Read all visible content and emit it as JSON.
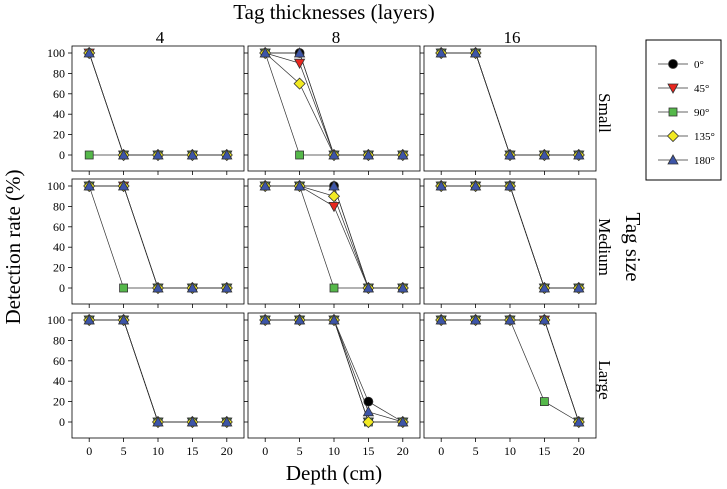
{
  "figure": {
    "title_top": "Tag thicknesses (layers)",
    "side_title": "Tag size",
    "xlabel": "Depth (cm)",
    "ylabel": "Detection rate (%)",
    "columns": [
      "4",
      "8",
      "16"
    ],
    "rows": [
      "Small",
      "Medium",
      "Large"
    ]
  },
  "legend": {
    "position": "top-right",
    "entries": [
      {
        "label": "0°",
        "marker": "circle",
        "color": "#000000"
      },
      {
        "label": "45°",
        "marker": "triangle-down",
        "color": "#e8261e"
      },
      {
        "label": "90°",
        "marker": "square",
        "color": "#55b84a"
      },
      {
        "label": "135°",
        "marker": "diamond",
        "color": "#f2ea22"
      },
      {
        "label": "180°",
        "marker": "triangle-up",
        "color": "#3d55a8"
      }
    ]
  },
  "chart_data": {
    "type": "line",
    "title": "Tag thicknesses (layers)",
    "xlabel": "Depth (cm)",
    "ylabel": "Detection rate (%)",
    "x": [
      0,
      5,
      10,
      15,
      20
    ],
    "xticks": [
      "0",
      "5",
      "10",
      "15",
      "20"
    ],
    "yticks": [
      "0",
      "20",
      "40",
      "60",
      "80",
      "100"
    ],
    "ylim": [
      0,
      100
    ],
    "xlim": [
      -2.5,
      22.5
    ],
    "panels": [
      {
        "row": "Small",
        "column": "4",
        "series": [
          {
            "name": "0°",
            "values": [
              100,
              0,
              0,
              0,
              0
            ]
          },
          {
            "name": "45°",
            "values": [
              100,
              0,
              0,
              0,
              0
            ]
          },
          {
            "name": "90°",
            "values": [
              0,
              0,
              0,
              0,
              0
            ]
          },
          {
            "name": "135°",
            "values": [
              100,
              0,
              0,
              0,
              0
            ]
          },
          {
            "name": "180°",
            "values": [
              100,
              0,
              0,
              0,
              0
            ]
          }
        ]
      },
      {
        "row": "Small",
        "column": "8",
        "series": [
          {
            "name": "0°",
            "values": [
              100,
              100,
              0,
              0,
              0
            ]
          },
          {
            "name": "45°",
            "values": [
              100,
              90,
              0,
              0,
              0
            ]
          },
          {
            "name": "90°",
            "values": [
              100,
              0,
              0,
              0,
              0
            ]
          },
          {
            "name": "135°",
            "values": [
              100,
              70,
              0,
              0,
              0
            ]
          },
          {
            "name": "180°",
            "values": [
              100,
              100,
              0,
              0,
              0
            ]
          }
        ]
      },
      {
        "row": "Small",
        "column": "16",
        "series": [
          {
            "name": "0°",
            "values": [
              100,
              100,
              0,
              0,
              0
            ]
          },
          {
            "name": "45°",
            "values": [
              100,
              100,
              0,
              0,
              0
            ]
          },
          {
            "name": "90°",
            "values": [
              100,
              100,
              0,
              0,
              0
            ]
          },
          {
            "name": "135°",
            "values": [
              100,
              100,
              0,
              0,
              0
            ]
          },
          {
            "name": "180°",
            "values": [
              100,
              100,
              0,
              0,
              0
            ]
          }
        ]
      },
      {
        "row": "Medium",
        "column": "4",
        "series": [
          {
            "name": "0°",
            "values": [
              100,
              100,
              0,
              0,
              0
            ]
          },
          {
            "name": "45°",
            "values": [
              100,
              100,
              0,
              0,
              0
            ]
          },
          {
            "name": "90°",
            "values": [
              100,
              0,
              0,
              0,
              0
            ]
          },
          {
            "name": "135°",
            "values": [
              100,
              100,
              0,
              0,
              0
            ]
          },
          {
            "name": "180°",
            "values": [
              100,
              100,
              0,
              0,
              0
            ]
          }
        ]
      },
      {
        "row": "Medium",
        "column": "8",
        "series": [
          {
            "name": "0°",
            "values": [
              100,
              100,
              100,
              0,
              0
            ]
          },
          {
            "name": "45°",
            "values": [
              100,
              100,
              80,
              0,
              0
            ]
          },
          {
            "name": "90°",
            "values": [
              100,
              100,
              0,
              0,
              0
            ]
          },
          {
            "name": "135°",
            "values": [
              100,
              100,
              90,
              0,
              0
            ]
          },
          {
            "name": "180°",
            "values": [
              100,
              100,
              100,
              0,
              0
            ]
          }
        ]
      },
      {
        "row": "Medium",
        "column": "16",
        "series": [
          {
            "name": "0°",
            "values": [
              100,
              100,
              100,
              0,
              0
            ]
          },
          {
            "name": "45°",
            "values": [
              100,
              100,
              100,
              0,
              0
            ]
          },
          {
            "name": "90°",
            "values": [
              100,
              100,
              100,
              0,
              0
            ]
          },
          {
            "name": "135°",
            "values": [
              100,
              100,
              100,
              0,
              0
            ]
          },
          {
            "name": "180°",
            "values": [
              100,
              100,
              100,
              0,
              0
            ]
          }
        ]
      },
      {
        "row": "Large",
        "column": "4",
        "series": [
          {
            "name": "0°",
            "values": [
              100,
              100,
              0,
              0,
              0
            ]
          },
          {
            "name": "45°",
            "values": [
              100,
              100,
              0,
              0,
              0
            ]
          },
          {
            "name": "90°",
            "values": [
              100,
              100,
              0,
              0,
              0
            ]
          },
          {
            "name": "135°",
            "values": [
              100,
              100,
              0,
              0,
              0
            ]
          },
          {
            "name": "180°",
            "values": [
              100,
              100,
              0,
              0,
              0
            ]
          }
        ]
      },
      {
        "row": "Large",
        "column": "8",
        "series": [
          {
            "name": "0°",
            "values": [
              100,
              100,
              100,
              20,
              0
            ]
          },
          {
            "name": "45°",
            "values": [
              100,
              100,
              100,
              0,
              0
            ]
          },
          {
            "name": "90°",
            "values": [
              100,
              100,
              100,
              0,
              0
            ]
          },
          {
            "name": "135°",
            "values": [
              100,
              100,
              100,
              0,
              0
            ]
          },
          {
            "name": "180°",
            "values": [
              100,
              100,
              100,
              10,
              0
            ]
          }
        ]
      },
      {
        "row": "Large",
        "column": "16",
        "series": [
          {
            "name": "0°",
            "values": [
              100,
              100,
              100,
              100,
              0
            ]
          },
          {
            "name": "45°",
            "values": [
              100,
              100,
              100,
              100,
              0
            ]
          },
          {
            "name": "90°",
            "values": [
              100,
              100,
              100,
              20,
              0
            ]
          },
          {
            "name": "135°",
            "values": [
              100,
              100,
              100,
              100,
              0
            ]
          },
          {
            "name": "180°",
            "values": [
              100,
              100,
              100,
              100,
              0
            ]
          }
        ]
      }
    ]
  }
}
